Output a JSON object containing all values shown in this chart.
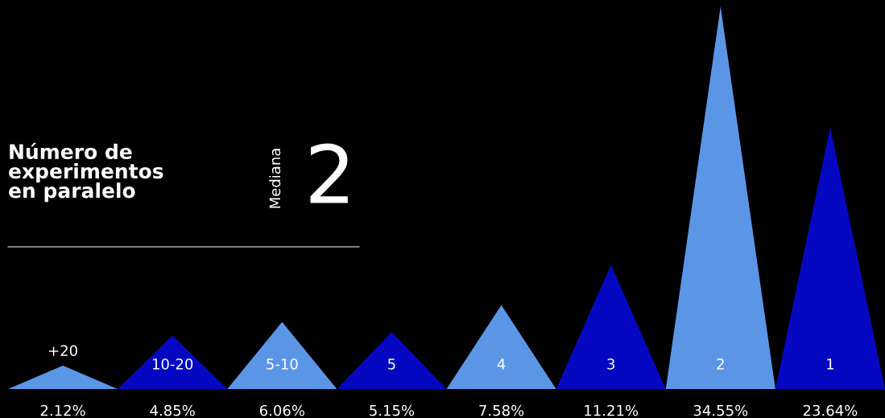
{
  "chart_data": {
    "type": "bar",
    "title": "Número de\nexperimentos\nen paralelo",
    "categories": [
      "+20",
      "10-20",
      "5-10",
      "5",
      "4",
      "3",
      "2",
      "1"
    ],
    "values": [
      2.12,
      4.85,
      6.06,
      5.15,
      7.58,
      11.21,
      34.55,
      23.64
    ],
    "colors": [
      "#5b96e6",
      "#0508c0",
      "#5b96e6",
      "#0508c0",
      "#5b96e6",
      "#0508c0",
      "#5b96e6",
      "#0508c0"
    ],
    "value_labels": [
      "2.12%",
      "4.85%",
      "6.06%",
      "5.15%",
      "7.58%",
      "11.21%",
      "34.55%",
      "23.64%"
    ],
    "annotations": [
      "Mediana",
      "2"
    ]
  }
}
